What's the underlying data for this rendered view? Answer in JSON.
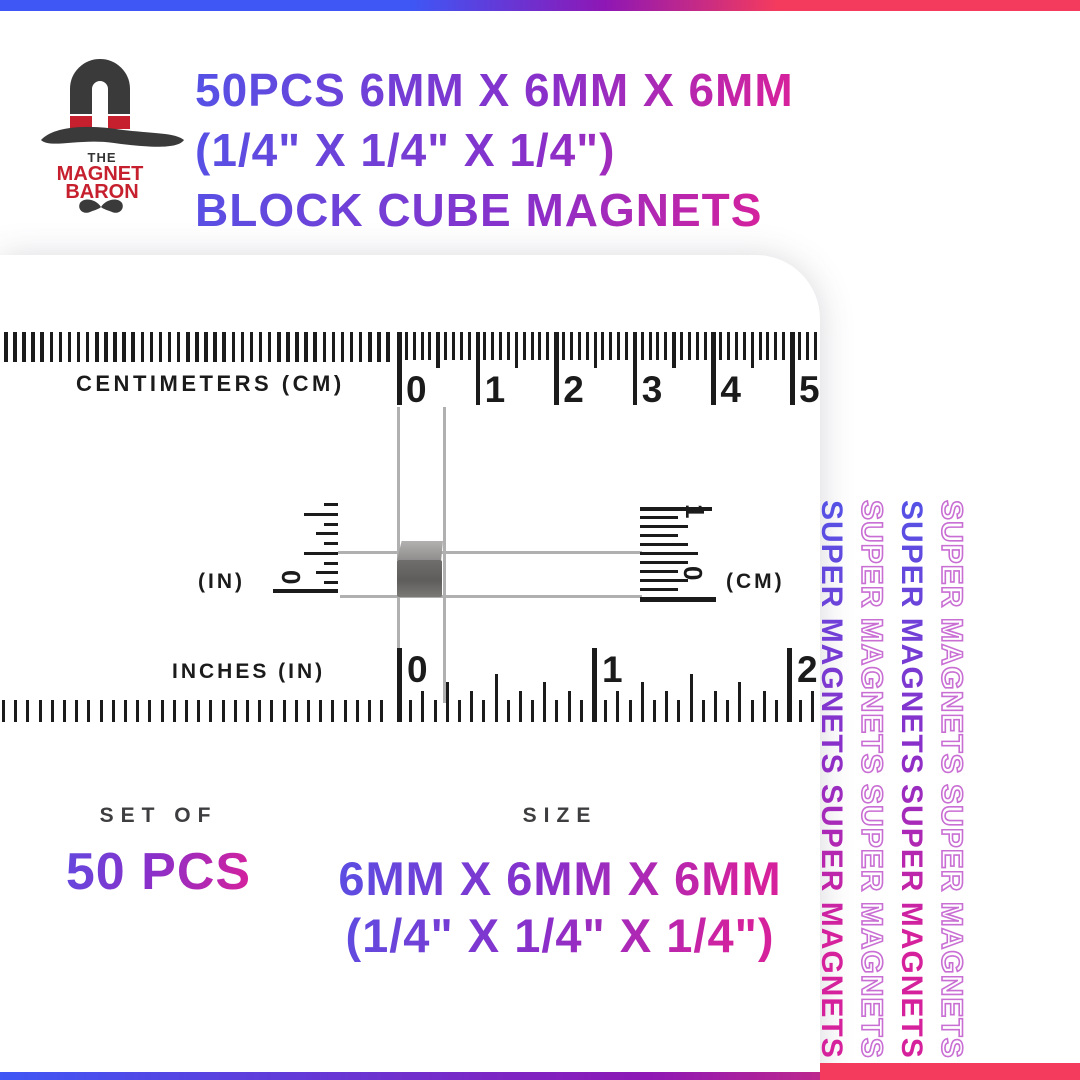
{
  "brand": {
    "the": "THE",
    "magnet": "MAGNET",
    "baron": "BARON"
  },
  "title": {
    "line1": "50PCS 6MM X 6MM X 6MM",
    "line2": "(1/4\" X 1/4\" X 1/4\")",
    "line3": "BLOCK CUBE MAGNETS"
  },
  "ruler": {
    "cm_label": "CENTIMETERS (CM)",
    "cm_numbers": [
      "0",
      "1",
      "2",
      "3",
      "4",
      "5"
    ],
    "in_label": "INCHES (IN)",
    "in_numbers": [
      "0",
      "1",
      "2"
    ],
    "side_in_label": "(IN)",
    "side_in_zero": "0",
    "side_cm_label": "(CM)",
    "side_cm_zero": "0",
    "side_cm_one": "1"
  },
  "watermark": {
    "text": "SUPER MAGNETS SUPER MAGNETS"
  },
  "footer": {
    "set_of_label": "SET OF",
    "set_of_value": "50 PCS",
    "size_label": "SIZE",
    "size_line1": "6MM X 6MM X 6MM",
    "size_line2": "(1/4\" X 1/4\" X 1/4\")"
  },
  "colors": {
    "g_blue": "#5552e6",
    "g_purple": "#8b2fc9",
    "g_magenta": "#d6219c",
    "bar_blue": "#3e57f5",
    "bar_purple": "#8e17b5",
    "bar_red": "#f43b5e",
    "logo_red": "#c6202e",
    "ink": "#1b1b1b",
    "dark": "#3a3a3a",
    "guide_gray": "#b0b0b0",
    "outline_violet": "#c96fd4"
  }
}
